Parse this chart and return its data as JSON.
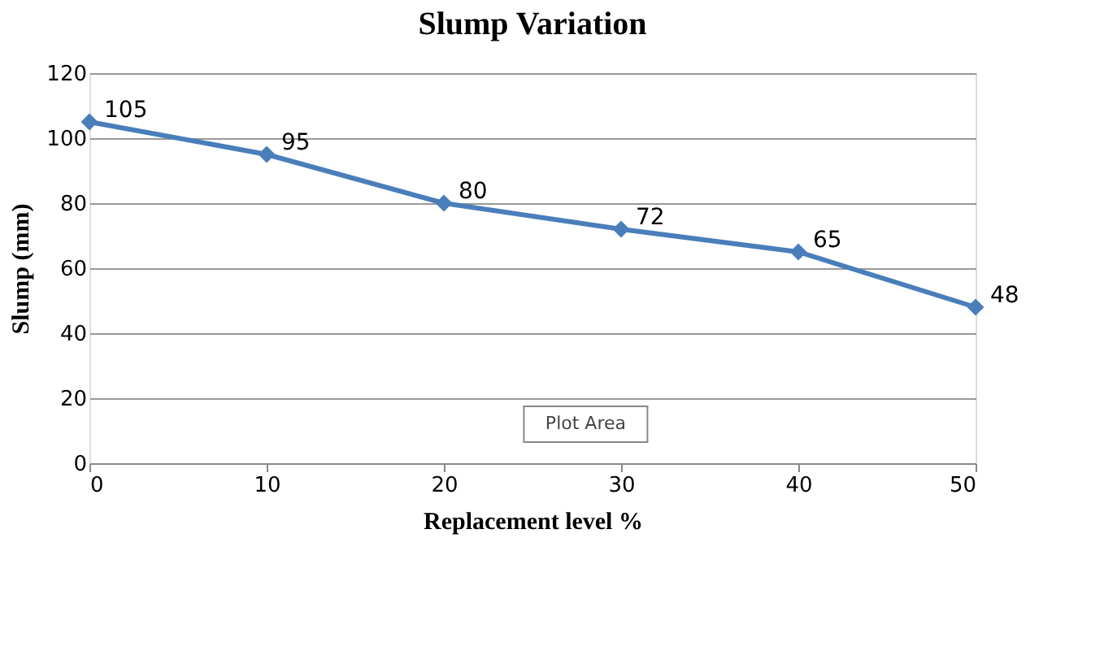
{
  "chart_data": {
    "type": "line",
    "title": "Slump Variation",
    "xlabel": "Replacement level %",
    "ylabel": "Slump (mm)",
    "x": [
      0,
      10,
      20,
      30,
      40,
      50
    ],
    "series": [
      {
        "color": "#4a7ebb",
        "values": [
          105,
          95,
          80,
          72,
          65,
          48
        ]
      }
    ],
    "xlim": [
      0,
      50
    ],
    "xticks": [
      0,
      10,
      20,
      30,
      40,
      50
    ],
    "ylim": [
      0,
      120
    ],
    "yticks": [
      0,
      20,
      40,
      60,
      80,
      100,
      120
    ],
    "grid": "y",
    "marker": "diamond",
    "line_style": "solid",
    "data_labels": true,
    "annotations": [
      "Plot Area"
    ]
  }
}
